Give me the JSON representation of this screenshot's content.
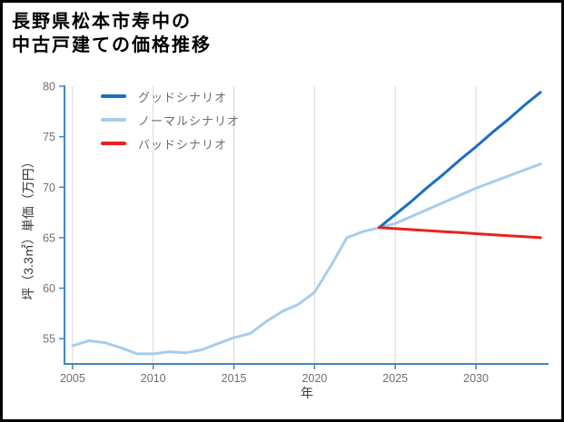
{
  "page": {
    "background": "#ffffff",
    "frame_border_color": "#000000"
  },
  "chart_data": {
    "type": "line",
    "title_lines": [
      "長野県松本市寿中の",
      "中古戸建ての価格推移"
    ],
    "xlabel": "年",
    "ylabel": "坪（3.3㎡）単価（万円）",
    "xlim": [
      2004.5,
      2034.5
    ],
    "ylim": [
      52.5,
      80
    ],
    "xticks": [
      2005,
      2010,
      2015,
      2020,
      2025,
      2030
    ],
    "yticks": [
      55,
      60,
      65,
      70,
      75,
      80
    ],
    "grid": "vertical-only",
    "grid_color": "#d9d9d9",
    "axis_color": "#4187c4",
    "tick_label_color": "#6f6f6f",
    "legend_position": "top-left-inside",
    "draw_order": [
      1,
      0,
      2
    ],
    "series": [
      {
        "name": "グッドシナリオ",
        "color": "#1a6fc0",
        "x": [
          2024,
          2025,
          2026,
          2027,
          2028,
          2029,
          2030,
          2031,
          2032,
          2033,
          2034
        ],
        "y": [
          66.0,
          67.3,
          68.6,
          70.0,
          71.3,
          72.7,
          74.0,
          75.4,
          76.7,
          78.1,
          79.4
        ]
      },
      {
        "name": "ノーマルシナリオ",
        "color": "#a7cdec",
        "x": [
          2005,
          2006,
          2007,
          2008,
          2009,
          2010,
          2011,
          2012,
          2013,
          2014,
          2015,
          2016,
          2017,
          2018,
          2019,
          2020,
          2021,
          2022,
          2023,
          2024,
          2025,
          2026,
          2027,
          2028,
          2029,
          2030,
          2031,
          2032,
          2033,
          2034
        ],
        "y": [
          54.3,
          54.8,
          54.6,
          54.1,
          53.5,
          53.5,
          53.7,
          53.6,
          53.9,
          54.5,
          55.1,
          55.5,
          56.7,
          57.7,
          58.4,
          59.6,
          62.2,
          65.0,
          65.6,
          66.0,
          66.4,
          67.1,
          67.8,
          68.5,
          69.2,
          69.9,
          70.5,
          71.1,
          71.7,
          72.3
        ]
      },
      {
        "name": "バッドシナリオ",
        "color": "#e8231e",
        "x": [
          2024,
          2025,
          2026,
          2027,
          2028,
          2029,
          2030,
          2031,
          2032,
          2033,
          2034
        ],
        "y": [
          66.0,
          65.9,
          65.8,
          65.7,
          65.6,
          65.5,
          65.4,
          65.3,
          65.2,
          65.1,
          65.0
        ]
      }
    ]
  }
}
